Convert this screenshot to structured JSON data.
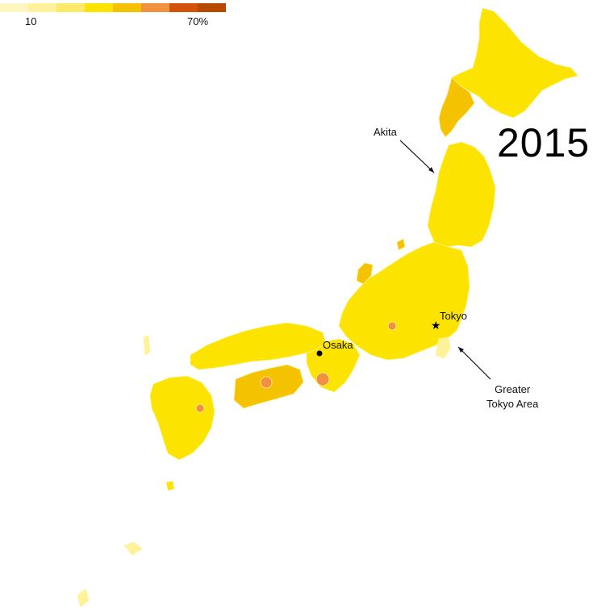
{
  "legend": {
    "colors": [
      "#fff7bf",
      "#fff29a",
      "#fde96a",
      "#fce300",
      "#f5c200",
      "#f09040",
      "#d4530a",
      "#b84a00"
    ],
    "min_label": "10",
    "max_label": "70%"
  },
  "year": "2015",
  "annotations": {
    "akita": "Akita",
    "tokyo": "Tokyo",
    "osaka": "Osaka",
    "greater_tokyo_line1": "Greater",
    "greater_tokyo_line2": "Tokyo Area"
  },
  "map_colors": {
    "base": "#fce300",
    "light": "#fff29a",
    "pale": "#fff7bf",
    "mid": "#f5c200",
    "orange": "#f09040"
  }
}
